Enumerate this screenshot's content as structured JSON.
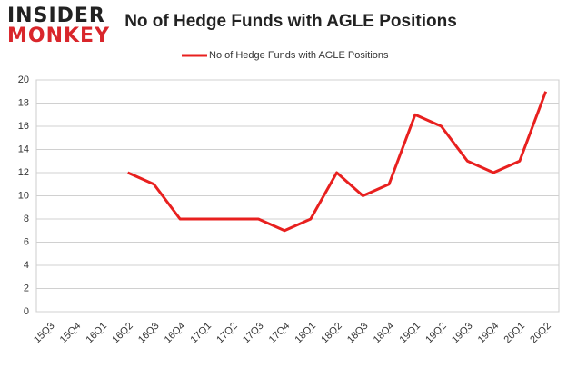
{
  "logo": {
    "line1": "INSIDER",
    "line2": "MONKEY"
  },
  "chart_data": {
    "type": "line",
    "title": "No of Hedge Funds with AGLE Positions",
    "categories": [
      "15Q3",
      "15Q4",
      "16Q1",
      "16Q2",
      "16Q3",
      "16Q4",
      "17Q1",
      "17Q2",
      "17Q3",
      "17Q4",
      "18Q1",
      "18Q2",
      "18Q3",
      "18Q4",
      "19Q1",
      "19Q2",
      "19Q3",
      "19Q4",
      "20Q1",
      "20Q2"
    ],
    "series": [
      {
        "name": "No of Hedge Funds with AGLE Positions",
        "color": "#e8201f",
        "values": [
          null,
          null,
          null,
          12,
          11,
          8,
          8,
          8,
          8,
          7,
          8,
          12,
          10,
          11,
          17,
          16,
          13,
          12,
          13,
          19
        ]
      }
    ],
    "ylim": [
      0,
      20
    ],
    "yticks": [
      0,
      2,
      4,
      6,
      8,
      10,
      12,
      14,
      16,
      18,
      20
    ],
    "grid": true,
    "legend": "top"
  }
}
